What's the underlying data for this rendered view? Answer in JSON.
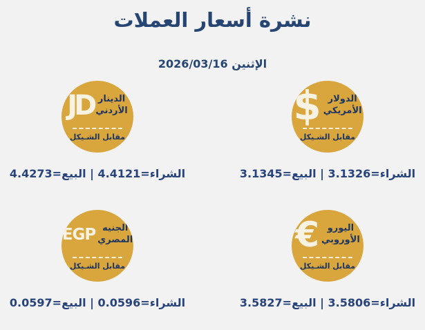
{
  "header": {
    "title": "نشرة أسعار العملات",
    "date_line": "الإثنين 2026/03/16",
    "weekday": "الإثنين",
    "date": "2026/03/16"
  },
  "colors": {
    "background": "#F2F2F2",
    "badge_gold": "#D9A63E",
    "heading_navy": "#264572",
    "badge_text_navy": "#1E3560",
    "rate_text_navy": "#28437C",
    "symbol_cream": "#F7F2E2"
  },
  "currencies": [
    {
      "id": "usd",
      "symbol": "$",
      "name_line1": "الدولار",
      "name_line2": "الأمريكي",
      "vs_label": "مقابل الشـيكل",
      "buy_label": "الشراء",
      "sell_label": "البيع",
      "buy": "3.1326",
      "sell": "3.1345",
      "rate_text": "الشراء=3.1326 | البيع=3.1345"
    },
    {
      "id": "jod",
      "symbol": "JD",
      "name_line1": "الدينار",
      "name_line2": "الأردني",
      "vs_label": "مقابل الشـيكل",
      "buy_label": "الشراء",
      "sell_label": "البيع",
      "buy": "4.4121",
      "sell": "4.4273",
      "rate_text": "الشراء=4.4121 | البيع=4.4273"
    },
    {
      "id": "eur",
      "symbol": "€",
      "name_line1": "اليورو",
      "name_line2": "الأوروبي",
      "vs_label": "مقابل الشـيكل",
      "buy_label": "الشراء",
      "sell_label": "البيع",
      "buy": "3.5806",
      "sell": "3.5827",
      "rate_text": "الشراء=3.5806 | البيع=3.5827"
    },
    {
      "id": "egp",
      "symbol": "EGP",
      "name_line1": "الجنيه",
      "name_line2": "المصري",
      "vs_label": "مقابل الشـيكل",
      "buy_label": "الشراء",
      "sell_label": "البيع",
      "buy": "0.0596",
      "sell": "0.0597",
      "rate_text": "الشراء=0.0596 | البيع=0.0597"
    }
  ]
}
